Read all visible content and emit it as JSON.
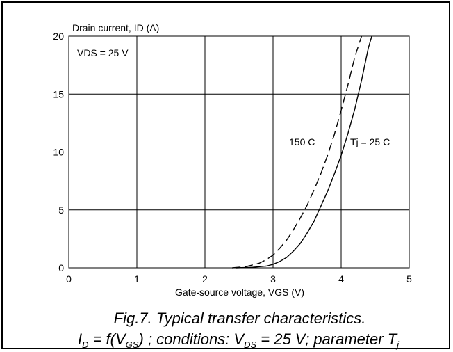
{
  "chart_data": {
    "type": "line",
    "xlabel": "Gate-source voltage, VGS (V)",
    "ylabel": "Drain current, ID (A)",
    "xlim": [
      0,
      5
    ],
    "ylim": [
      0,
      20
    ],
    "x_ticks": [
      "0",
      "1",
      "2",
      "3",
      "4",
      "5"
    ],
    "y_ticks": [
      "0",
      "5",
      "10",
      "15",
      "20"
    ],
    "grid": true,
    "annotation_vds": "VDS = 25 V",
    "series": [
      {
        "name": "Tj = 25 C",
        "style": "solid",
        "x": [
          2.45,
          2.7,
          2.9,
          3.0,
          3.1,
          3.2,
          3.3,
          3.4,
          3.5,
          3.6,
          3.7,
          3.8,
          3.9,
          4.0,
          4.1,
          4.2,
          4.3,
          4.4,
          4.45
        ],
        "y": [
          0.0,
          0.05,
          0.15,
          0.3,
          0.55,
          0.9,
          1.45,
          2.1,
          3.0,
          4.0,
          5.3,
          6.6,
          8.1,
          9.7,
          11.6,
          13.7,
          16.2,
          19.0,
          20.0
        ]
      },
      {
        "name": "150 C",
        "style": "dashed",
        "x": [
          2.4,
          2.6,
          2.8,
          2.9,
          3.0,
          3.1,
          3.2,
          3.3,
          3.4,
          3.5,
          3.6,
          3.7,
          3.8,
          3.9,
          4.0,
          4.1,
          4.2,
          4.3
        ],
        "y": [
          0.0,
          0.1,
          0.4,
          0.7,
          1.1,
          1.7,
          2.4,
          3.3,
          4.3,
          5.4,
          6.7,
          8.1,
          9.7,
          11.5,
          13.6,
          15.8,
          18.2,
          20.0
        ]
      }
    ]
  },
  "caption": {
    "line1": "Fig.7.   Typical transfer characteristics.",
    "line2": {
      "i": "I",
      "i_sub": "D",
      "f_open": " = f(",
      "v": "V",
      "v_sub": "GS",
      "cond": ") ; conditions: ",
      "vds": "V",
      "vds_sub": "DS",
      "param": " = 25 V; parameter ",
      "t": "T",
      "t_sub": "j"
    }
  }
}
